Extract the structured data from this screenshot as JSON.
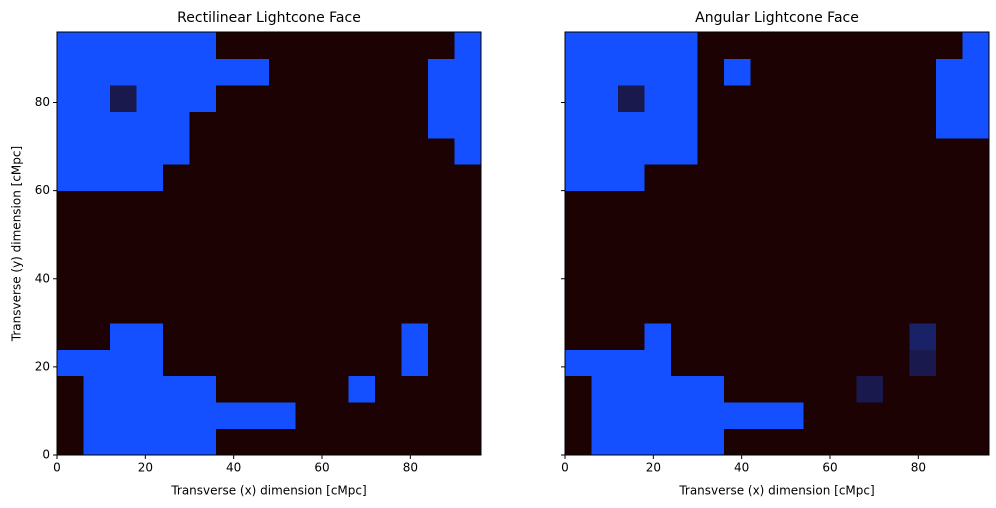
{
  "chart_data": [
    {
      "type": "heatmap",
      "title": "Rectilinear Lightcone Face",
      "x_label": "Transverse (x) dimension [cMpc]",
      "y_label": "Transverse (y) dimension [cMpc]",
      "xlim": [
        0,
        96
      ],
      "ylim": [
        0,
        96
      ],
      "xticks": [
        0,
        20,
        40,
        60,
        80
      ],
      "yticks": [
        0,
        20,
        40,
        60,
        80
      ],
      "show_yticklabels": true,
      "zlim": [
        0,
        1
      ],
      "colors": [
        "#1c0202",
        "#1450ff"
      ],
      "x_edges": [
        0,
        6,
        12,
        18,
        24,
        30,
        36,
        42,
        48,
        54,
        60,
        66,
        72,
        78,
        84,
        90,
        96
      ],
      "y_edges": [
        0,
        6,
        12,
        18,
        24,
        30,
        36,
        42,
        48,
        54,
        60,
        66,
        72,
        78,
        84,
        90,
        96
      ],
      "z": [
        [
          0,
          1,
          1,
          1,
          1,
          1,
          0,
          0,
          0,
          0,
          0,
          0,
          0,
          0,
          0,
          0
        ],
        [
          0,
          1,
          1,
          1,
          1,
          1,
          1,
          1,
          1,
          0,
          0,
          0,
          0,
          0,
          0,
          0
        ],
        [
          0,
          1,
          1,
          1,
          1,
          1,
          0,
          0,
          0,
          0,
          0,
          1,
          0,
          0,
          0,
          0
        ],
        [
          1,
          1,
          1,
          1,
          0,
          0,
          0,
          0,
          0,
          0,
          0,
          0,
          0,
          1,
          0,
          0
        ],
        [
          0,
          0,
          1,
          1,
          0,
          0,
          0,
          0,
          0,
          0,
          0,
          0,
          0,
          1,
          0,
          0
        ],
        [
          0,
          0,
          0,
          0,
          0,
          0,
          0,
          0,
          0,
          0,
          0,
          0,
          0,
          0,
          0,
          0
        ],
        [
          0,
          0,
          0,
          0,
          0,
          0,
          0,
          0,
          0,
          0,
          0,
          0,
          0,
          0,
          0,
          0
        ],
        [
          0,
          0,
          0,
          0,
          0,
          0,
          0,
          0,
          0,
          0,
          0,
          0,
          0,
          0,
          0,
          0
        ],
        [
          0,
          0,
          0,
          0,
          0,
          0,
          0,
          0,
          0,
          0,
          0,
          0,
          0,
          0,
          0,
          0
        ],
        [
          0,
          0,
          0,
          0,
          0,
          0,
          0,
          0,
          0,
          0,
          0,
          0,
          0,
          0,
          0,
          0
        ],
        [
          1,
          1,
          1,
          1,
          0,
          0,
          0,
          0,
          0,
          0,
          0,
          0,
          0,
          0,
          0,
          0
        ],
        [
          1,
          1,
          1,
          1,
          1,
          0,
          0,
          0,
          0,
          0,
          0,
          0,
          0,
          0,
          0,
          1
        ],
        [
          1,
          1,
          1,
          1,
          1,
          0,
          0,
          0,
          0,
          0,
          0,
          0,
          0,
          0,
          1,
          1
        ],
        [
          1,
          1,
          0.3,
          1,
          1,
          1,
          0,
          0,
          0,
          0,
          0,
          0,
          0,
          0,
          1,
          1
        ],
        [
          1,
          1,
          1,
          1,
          1,
          1,
          1,
          1,
          0,
          0,
          0,
          0,
          0,
          0,
          1,
          1
        ],
        [
          1,
          1,
          1,
          1,
          1,
          1,
          0,
          0,
          0,
          0,
          0,
          0,
          0,
          0,
          0,
          1
        ]
      ]
    },
    {
      "type": "heatmap",
      "title": "Angular Lightcone Face",
      "x_label": "Transverse (x) dimension [cMpc]",
      "xlim": [
        0,
        96
      ],
      "ylim": [
        0,
        96
      ],
      "xticks": [
        0,
        20,
        40,
        60,
        80
      ],
      "yticks": [
        0,
        20,
        40,
        60,
        80
      ],
      "show_yticklabels": false,
      "zlim": [
        0,
        1
      ],
      "colors": [
        "#1c0202",
        "#1450ff"
      ],
      "x_edges": [
        0,
        6,
        12,
        18,
        24,
        30,
        36,
        42,
        48,
        54,
        60,
        66,
        72,
        78,
        84,
        90,
        96
      ],
      "y_edges": [
        0,
        6,
        12,
        18,
        24,
        30,
        36,
        42,
        48,
        54,
        60,
        66,
        72,
        78,
        84,
        90,
        96
      ],
      "z": [
        [
          0,
          1,
          1,
          1,
          1,
          1,
          0,
          0,
          0,
          0,
          0,
          0,
          0,
          0,
          0,
          0
        ],
        [
          0,
          1,
          1,
          1,
          1,
          1,
          1,
          1,
          1,
          0,
          0,
          0,
          0,
          0,
          0,
          0
        ],
        [
          0,
          1,
          1,
          1,
          1,
          1,
          0,
          0,
          0,
          0,
          0,
          0.3,
          0,
          0,
          0,
          0
        ],
        [
          1,
          1,
          1,
          1,
          0,
          0,
          0,
          0,
          0,
          0,
          0,
          0,
          0,
          0.3,
          0,
          0
        ],
        [
          0,
          0,
          0,
          1,
          0,
          0,
          0,
          0,
          0,
          0,
          0,
          0,
          0,
          0.4,
          0,
          0
        ],
        [
          0,
          0,
          0,
          0,
          0,
          0,
          0,
          0,
          0,
          0,
          0,
          0,
          0,
          0,
          0,
          0
        ],
        [
          0,
          0,
          0,
          0,
          0,
          0,
          0,
          0,
          0,
          0,
          0,
          0,
          0,
          0,
          0,
          0
        ],
        [
          0,
          0,
          0,
          0,
          0,
          0,
          0,
          0,
          0,
          0,
          0,
          0,
          0,
          0,
          0,
          0
        ],
        [
          0,
          0,
          0,
          0,
          0,
          0,
          0,
          0,
          0,
          0,
          0,
          0,
          0,
          0,
          0,
          0
        ],
        [
          0,
          0,
          0,
          0,
          0,
          0,
          0,
          0,
          0,
          0,
          0,
          0,
          0,
          0,
          0,
          0
        ],
        [
          1,
          1,
          1,
          0,
          0,
          0,
          0,
          0,
          0,
          0,
          0,
          0,
          0,
          0,
          0,
          0
        ],
        [
          1,
          1,
          1,
          1,
          1,
          0,
          0,
          0,
          0,
          0,
          0,
          0,
          0,
          0,
          0,
          0
        ],
        [
          1,
          1,
          1,
          1,
          1,
          0,
          0,
          0,
          0,
          0,
          0,
          0,
          0,
          0,
          1,
          1
        ],
        [
          1,
          1,
          0.3,
          1,
          1,
          0,
          0,
          0,
          0,
          0,
          0,
          0,
          0,
          0,
          1,
          1
        ],
        [
          1,
          1,
          1,
          1,
          1,
          0,
          1,
          0,
          0,
          0,
          0,
          0,
          0,
          0,
          1,
          1
        ],
        [
          1,
          1,
          1,
          1,
          1,
          0,
          0,
          0,
          0,
          0,
          0,
          0,
          0,
          0,
          0,
          1
        ]
      ]
    }
  ]
}
